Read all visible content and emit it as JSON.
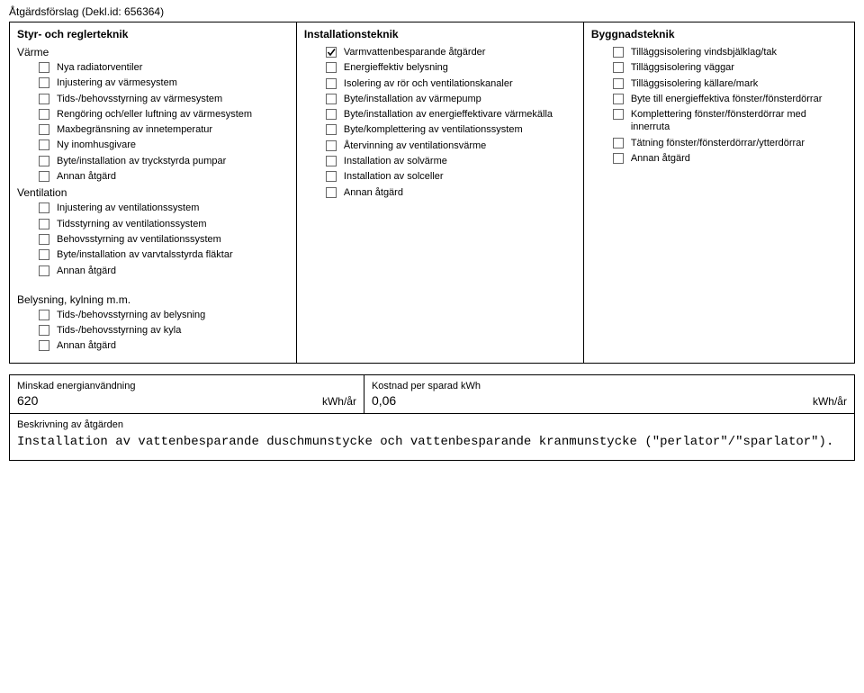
{
  "doc_title": "Åtgärdsförslag (Dekl.id: 656364)",
  "columns": {
    "col1": {
      "heading": "Styr- och reglerteknik",
      "group1_label": "Värme",
      "group1_items": [
        "Nya radiatorventiler",
        "Injustering av värmesystem",
        "Tids-/behovsstyrning av värmesystem",
        "Rengöring och/eller luftning av värmesystem",
        "Maxbegränsning av innetemperatur",
        "Ny inomhusgivare",
        "Byte/installation av tryckstyrda pumpar",
        "Annan åtgärd"
      ],
      "group2_label": "Ventilation",
      "group2_items": [
        "Injustering av ventilationssystem",
        "Tidsstyrning av ventilationssystem",
        "Behovsstyrning av ventilationssystem",
        "Byte/installation av varvtalsstyrda fläktar",
        "Annan åtgärd"
      ],
      "group3_label": "Belysning, kylning m.m.",
      "group3_items": [
        "Tids-/behovsstyrning av belysning",
        "Tids-/behovsstyrning av kyla",
        "Annan åtgärd"
      ]
    },
    "col2": {
      "heading": "Installationsteknik",
      "items": [
        {
          "label": "Varmvattenbesparande åtgärder",
          "checked": true
        },
        {
          "label": "Energieffektiv belysning",
          "checked": false
        },
        {
          "label": "Isolering av rör och ventilationskanaler",
          "checked": false
        },
        {
          "label": "Byte/installation av värmepump",
          "checked": false
        },
        {
          "label": "Byte/installation av energieffektivare värmekälla",
          "checked": false
        },
        {
          "label": "Byte/komplettering av ventilationssystem",
          "checked": false
        },
        {
          "label": "Återvinning av ventilationsvärme",
          "checked": false
        },
        {
          "label": "Installation av solvärme",
          "checked": false
        },
        {
          "label": "Installation av solceller",
          "checked": false
        },
        {
          "label": "Annan åtgärd",
          "checked": false
        }
      ]
    },
    "col3": {
      "heading": "Byggnadsteknik",
      "items": [
        "Tilläggsisolering vindsbjälklag/tak",
        "Tilläggsisolering väggar",
        "Tilläggsisolering källare/mark",
        "Byte till energieffektiva fönster/fönsterdörrar",
        "Komplettering fönster/fönsterdörrar med innerruta",
        "Tätning fönster/fönsterdörrar/ytterdörrar",
        "Annan åtgärd"
      ]
    }
  },
  "bottom": {
    "minskad_label": "Minskad energianvändning",
    "minskad_value": "620",
    "minskad_unit": "kWh/år",
    "kostnad_label": "Kostnad per sparad kWh",
    "kostnad_value": "0,06",
    "kostnad_unit": "kWh/år",
    "beskrivning_label": "Beskrivning av åtgärden",
    "beskrivning_text": "Installation av vattenbesparande duschmunstycke och vattenbesparande kranmunstycke (\"perlator\"/\"sparlator\")."
  },
  "colors": {
    "text": "#000000",
    "border": "#000000",
    "background": "#ffffff",
    "check": "#000000"
  }
}
